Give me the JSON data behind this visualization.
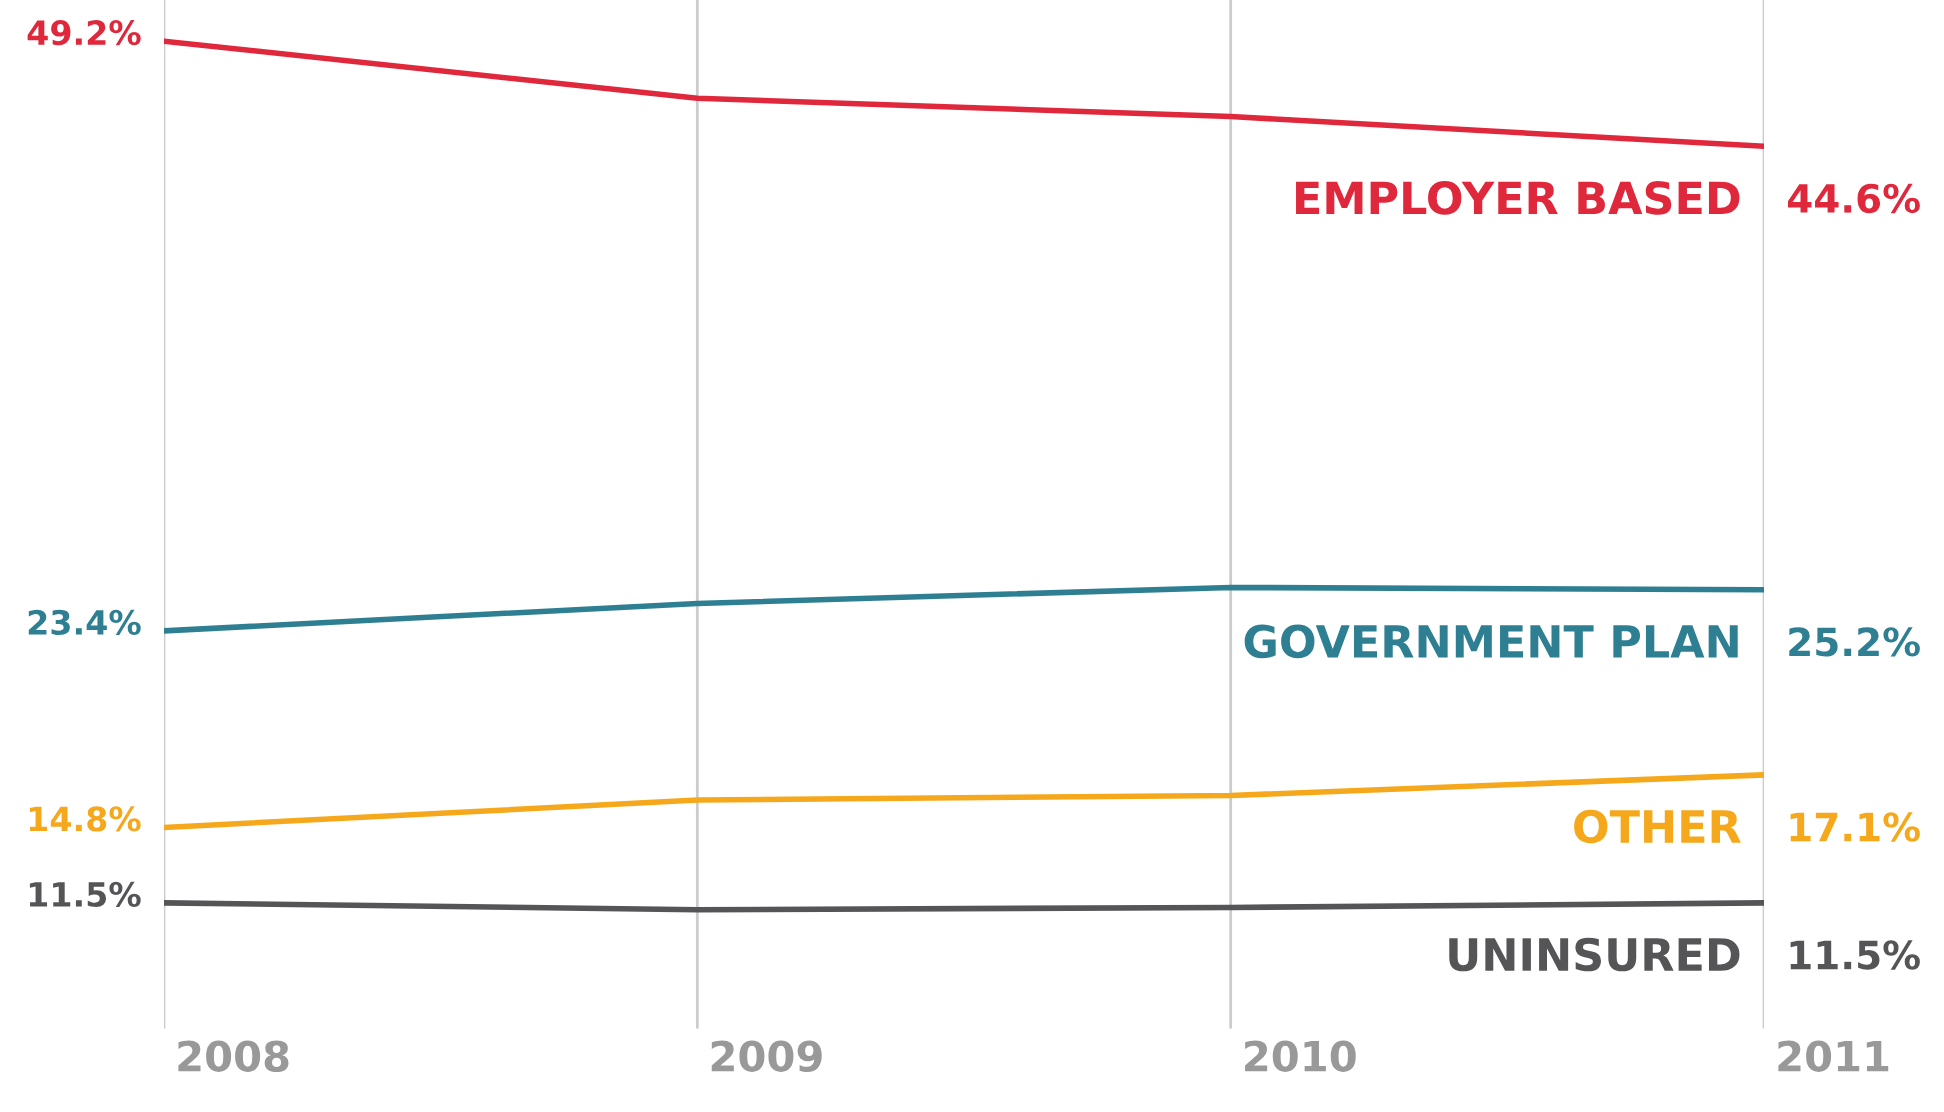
{
  "chart_data": {
    "type": "line",
    "categories": [
      "2008",
      "2009",
      "2010",
      "2011"
    ],
    "series": [
      {
        "name": "EMPLOYER BASED",
        "color": "#e0283c",
        "values": [
          49.2,
          46.7,
          45.9,
          44.6
        ],
        "value_labels": [
          "49.2%",
          null,
          null,
          "44.6%"
        ]
      },
      {
        "name": "GOVERNMENT PLAN",
        "color": "#2f7f93",
        "values": [
          23.4,
          24.6,
          25.3,
          25.2
        ],
        "value_labels": [
          "23.4%",
          null,
          null,
          "25.2%"
        ]
      },
      {
        "name": "OTHER",
        "color": "#f5a81c",
        "values": [
          14.8,
          16.0,
          16.2,
          17.1
        ],
        "value_labels": [
          "14.8%",
          null,
          null,
          "17.1%"
        ]
      },
      {
        "name": "UNINSURED",
        "color": "#555558",
        "values": [
          11.5,
          11.2,
          11.3,
          11.5
        ],
        "value_labels": [
          "11.5%",
          null,
          null,
          "11.5%"
        ]
      }
    ],
    "ylim": [
      6,
      51
    ],
    "grid": "x",
    "legend": false,
    "marker": "none",
    "line_style": "solid"
  }
}
